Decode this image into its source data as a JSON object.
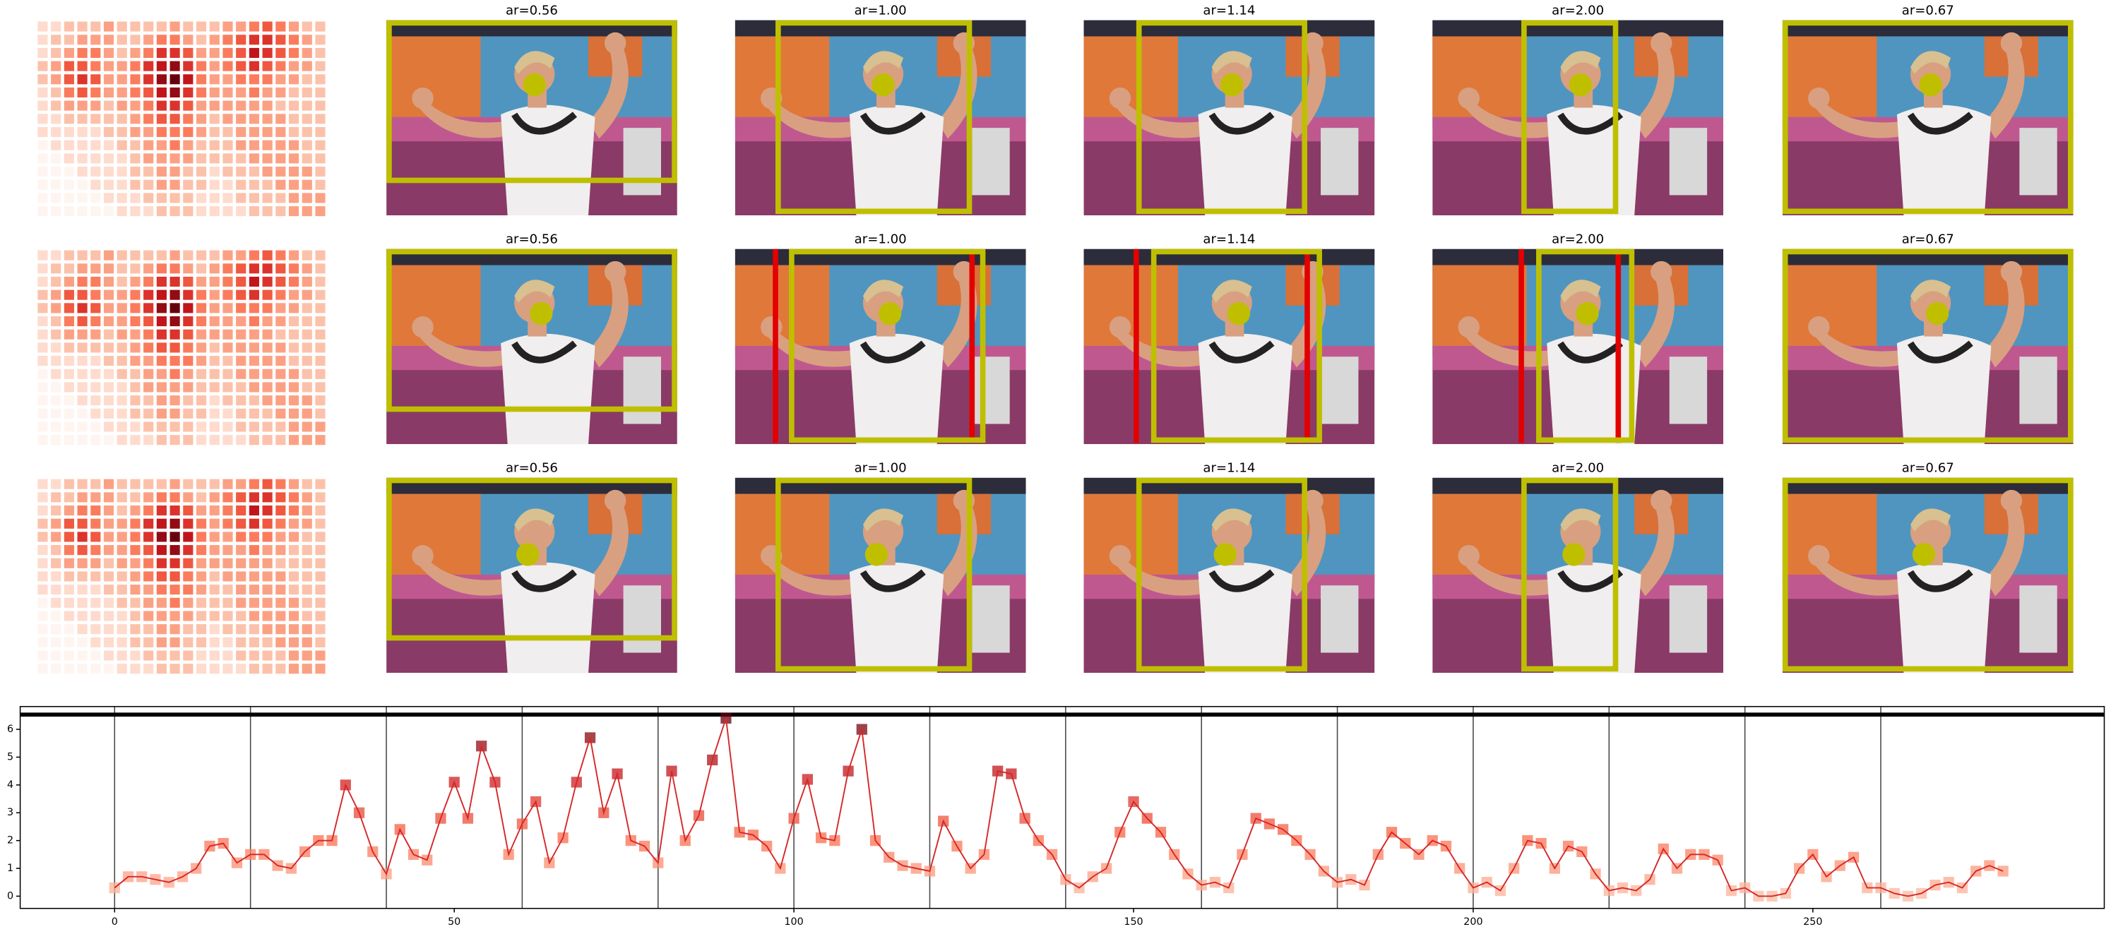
{
  "panels": {
    "rows": [
      {
        "titles": [
          "ar=0.56",
          "ar=1.00",
          "ar=1.14",
          "ar=2.00",
          "ar=0.67"
        ]
      },
      {
        "titles": [
          "ar=0.56",
          "ar=1.00",
          "ar=1.14",
          "ar=2.00",
          "ar=0.67"
        ]
      },
      {
        "titles": [
          "ar=0.56",
          "ar=1.00",
          "ar=1.14",
          "ar=2.00",
          "ar=0.67"
        ]
      }
    ]
  },
  "heatmap": {
    "cmap": [
      "#fff5f0",
      "#fcbba1",
      "#fb6a4a",
      "#cb181d",
      "#67000d"
    ],
    "values": [
      [
        1,
        1,
        2,
        2,
        2,
        3,
        2,
        2,
        2,
        2,
        3,
        2,
        2,
        2,
        3,
        3,
        4,
        5,
        4,
        3,
        2,
        2
      ],
      [
        1,
        2,
        2,
        3,
        3,
        3,
        2,
        2,
        3,
        4,
        4,
        3,
        2,
        3,
        4,
        5,
        6,
        6,
        5,
        4,
        3,
        2
      ],
      [
        1,
        2,
        3,
        4,
        4,
        3,
        2,
        3,
        4,
        6,
        6,
        5,
        3,
        3,
        4,
        5,
        7,
        6,
        5,
        4,
        3,
        2
      ],
      [
        2,
        3,
        5,
        5,
        4,
        3,
        3,
        4,
        6,
        7,
        8,
        6,
        4,
        3,
        4,
        5,
        6,
        5,
        4,
        3,
        3,
        2
      ],
      [
        2,
        3,
        5,
        6,
        5,
        3,
        3,
        4,
        6,
        8,
        9,
        7,
        4,
        3,
        3,
        4,
        4,
        4,
        3,
        3,
        2,
        2
      ],
      [
        1,
        2,
        4,
        5,
        4,
        3,
        3,
        4,
        5,
        7,
        8,
        6,
        4,
        3,
        3,
        3,
        4,
        3,
        3,
        2,
        2,
        2
      ],
      [
        1,
        2,
        3,
        3,
        3,
        2,
        3,
        3,
        4,
        6,
        6,
        5,
        3,
        3,
        3,
        3,
        3,
        3,
        2,
        2,
        2,
        2
      ],
      [
        1,
        1,
        2,
        2,
        2,
        2,
        2,
        3,
        4,
        5,
        5,
        4,
        3,
        2,
        3,
        3,
        3,
        3,
        3,
        2,
        2,
        2
      ],
      [
        1,
        1,
        1,
        1,
        1,
        2,
        2,
        3,
        3,
        4,
        4,
        4,
        3,
        2,
        2,
        3,
        3,
        3,
        3,
        2,
        2,
        2
      ],
      [
        0,
        1,
        1,
        1,
        1,
        1,
        2,
        2,
        3,
        3,
        4,
        3,
        2,
        2,
        2,
        3,
        3,
        3,
        3,
        3,
        2,
        2
      ],
      [
        0,
        0,
        1,
        1,
        1,
        1,
        1,
        2,
        3,
        3,
        3,
        3,
        2,
        2,
        2,
        2,
        3,
        3,
        3,
        3,
        2,
        2
      ],
      [
        0,
        0,
        0,
        1,
        1,
        1,
        1,
        2,
        2,
        3,
        3,
        2,
        2,
        1,
        2,
        2,
        2,
        3,
        3,
        3,
        3,
        2
      ],
      [
        0,
        0,
        0,
        0,
        1,
        1,
        1,
        2,
        2,
        3,
        3,
        2,
        2,
        1,
        1,
        2,
        2,
        2,
        3,
        3,
        3,
        2
      ],
      [
        0,
        0,
        0,
        0,
        0,
        1,
        1,
        1,
        2,
        2,
        2,
        2,
        1,
        1,
        1,
        2,
        2,
        2,
        2,
        3,
        3,
        3
      ],
      [
        0,
        0,
        0,
        0,
        0,
        0,
        1,
        1,
        1,
        2,
        2,
        2,
        1,
        1,
        1,
        1,
        2,
        2,
        2,
        3,
        3,
        3
      ]
    ]
  },
  "chart_data": {
    "type": "line",
    "x": [
      0,
      2,
      4,
      6,
      8,
      10,
      12,
      14,
      16,
      18,
      20,
      22,
      24,
      26,
      28,
      30,
      32,
      34,
      36,
      38,
      40,
      42,
      44,
      46,
      48,
      50,
      52,
      54,
      56,
      58,
      60,
      62,
      64,
      66,
      68,
      70,
      72,
      74,
      76,
      78,
      80,
      82,
      84,
      86,
      88,
      90,
      92,
      94,
      96,
      98,
      100,
      102,
      104,
      106,
      108,
      110,
      112,
      114,
      116,
      118,
      120,
      122,
      124,
      126,
      128,
      130,
      132,
      134,
      136,
      138,
      140,
      142,
      144,
      146,
      148,
      150,
      152,
      154,
      156,
      158,
      160,
      162,
      164,
      166,
      168,
      170,
      172,
      174,
      176,
      178,
      180,
      182,
      184,
      186,
      188,
      190,
      192,
      194,
      196,
      198,
      200,
      202,
      204,
      206,
      208,
      210,
      212,
      214,
      216,
      218,
      220,
      222,
      224,
      226,
      228,
      230,
      232,
      234,
      236,
      238,
      240,
      242,
      244,
      246,
      248,
      250,
      252,
      254,
      256,
      258,
      260,
      262,
      264,
      266,
      268,
      270,
      272,
      274,
      276,
      278
    ],
    "series": [
      {
        "color": "#d62728",
        "values": [
          0.3,
          0.7,
          0.7,
          0.6,
          0.5,
          0.7,
          1.0,
          1.8,
          1.9,
          1.2,
          1.5,
          1.5,
          1.1,
          1.0,
          1.6,
          2.0,
          2.0,
          4.0,
          3.0,
          1.6,
          0.8,
          2.4,
          1.5,
          1.3,
          2.8,
          4.1,
          2.8,
          5.4,
          4.1,
          1.5,
          2.6,
          3.4,
          1.2,
          2.1,
          4.1,
          5.7,
          3.0,
          4.4,
          2.0,
          1.8,
          1.2,
          4.5,
          2.0,
          2.9,
          4.9,
          6.4,
          2.3,
          2.2,
          1.8,
          1.0,
          2.8,
          4.2,
          2.1,
          2.0,
          4.5,
          6.0,
          2.0,
          1.4,
          1.1,
          1.0,
          0.9,
          2.7,
          1.8,
          1.0,
          1.5,
          4.5,
          4.4,
          2.8,
          2.0,
          1.5,
          0.6,
          0.3,
          0.7,
          1.0,
          2.3,
          3.4,
          2.8,
          2.3,
          1.5,
          0.8,
          0.4,
          0.5,
          0.3,
          1.5,
          2.8,
          2.6,
          2.4,
          2.0,
          1.5,
          0.9,
          0.5,
          0.6,
          0.4,
          1.5,
          2.3,
          1.9,
          1.5,
          2.0,
          1.8,
          1.0,
          0.3,
          0.5,
          0.2,
          1.0,
          2.0,
          1.9,
          1.0,
          1.8,
          1.6,
          0.8,
          0.2,
          0.3,
          0.2,
          0.6,
          1.7,
          1.0,
          1.5,
          1.5,
          1.3,
          0.2,
          0.3,
          0.0,
          0.0,
          0.1,
          1.0,
          1.5,
          0.7,
          1.1,
          1.4,
          0.3,
          0.3,
          0.1,
          0.0,
          0.1,
          0.4,
          0.5,
          0.3,
          0.9,
          1.1,
          0.9
        ]
      }
    ],
    "marker_cmap": [
      "#fcbba1",
      "#fb6a4a",
      "#cb181d",
      "#67000d"
    ],
    "xlim": [
      -13.9,
      292.9
    ],
    "ylim": [
      -0.44,
      6.82
    ],
    "xticks": [
      0,
      50,
      100,
      150,
      200,
      250
    ],
    "yticks": [
      0,
      1,
      2,
      3,
      4,
      5,
      6
    ],
    "vlines": [
      0,
      20,
      40,
      60,
      80,
      100,
      120,
      140,
      160,
      180,
      200,
      220,
      240,
      260
    ],
    "hline": 6.53
  }
}
